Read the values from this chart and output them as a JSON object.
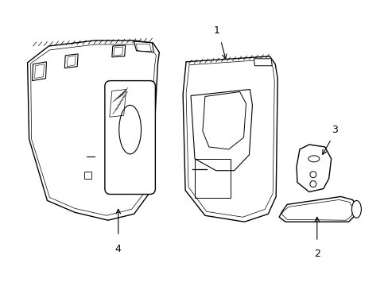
{
  "background_color": "#ffffff",
  "line_color": "#000000",
  "figsize": [
    4.89,
    3.6
  ],
  "dpi": 100,
  "label_fontsize": 9,
  "lw": 1.0
}
